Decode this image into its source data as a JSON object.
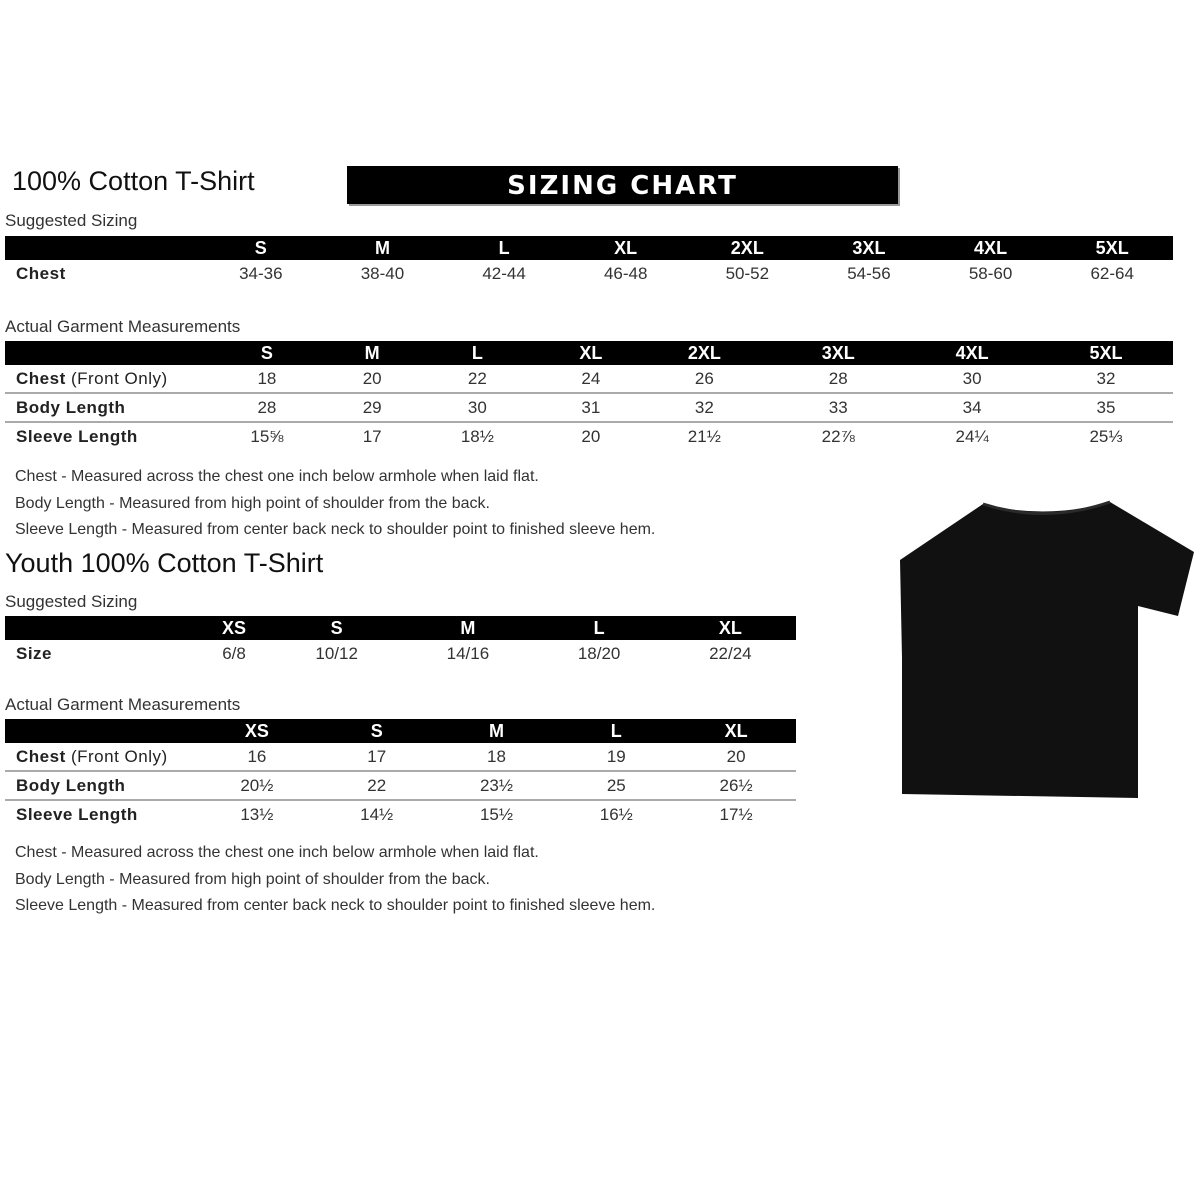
{
  "adult": {
    "title": "100% Cotton T-Shirt",
    "banner": "SIZING CHART",
    "suggested_label": "Suggested Sizing",
    "sizes": [
      "S",
      "M",
      "L",
      "XL",
      "2XL",
      "3XL",
      "4XL",
      "5XL"
    ],
    "suggested_rows": [
      {
        "label": "Chest",
        "values": [
          "34-36",
          "38-40",
          "42-44",
          "46-48",
          "50-52",
          "54-56",
          "58-60",
          "62-64"
        ]
      }
    ],
    "actual_label": "Actual Garment Measurements",
    "actual_rows": [
      {
        "label": "Chest",
        "suffix": " (Front Only)",
        "values": [
          "18",
          "20",
          "22",
          "24",
          "26",
          "28",
          "30",
          "32"
        ]
      },
      {
        "label": "Body Length",
        "suffix": "",
        "values": [
          "28",
          "29",
          "30",
          "31",
          "32",
          "33",
          "34",
          "35"
        ]
      },
      {
        "label": "Sleeve Length",
        "suffix": "",
        "values": [
          "15⅝",
          "17",
          "18½",
          "20",
          "21½",
          "22⅞",
          "24¼",
          "25⅓"
        ]
      }
    ],
    "notes": [
      "Chest - Measured across the chest one inch below armhole when laid flat.",
      "Body Length - Measured from high point of shoulder from the back.",
      "Sleeve Length - Measured from center back neck to shoulder point to finished sleeve hem."
    ]
  },
  "youth": {
    "title": "Youth 100% Cotton T-Shirt",
    "suggested_label": "Suggested Sizing",
    "sizes": [
      "XS",
      "S",
      "M",
      "L",
      "XL"
    ],
    "suggested_rows": [
      {
        "label": "Size",
        "values": [
          "6/8",
          "10/12",
          "14/16",
          "18/20",
          "22/24"
        ]
      }
    ],
    "actual_label": "Actual Garment Measurements",
    "actual_rows": [
      {
        "label": "Chest",
        "suffix": " (Front Only)",
        "values": [
          "16",
          "17",
          "18",
          "19",
          "20"
        ]
      },
      {
        "label": "Body Length",
        "suffix": "",
        "values": [
          "20½",
          "22",
          "23½",
          "25",
          "26½"
        ]
      },
      {
        "label": "Sleeve Length",
        "suffix": "",
        "values": [
          "13½",
          "14½",
          "15½",
          "16½",
          "17½"
        ]
      }
    ],
    "notes": [
      "Chest - Measured across the chest one inch below armhole when laid flat.",
      "Body Length - Measured from high point of shoulder from the back.",
      "Sleeve Length - Measured from center back neck to shoulder point to finished sleeve hem."
    ]
  },
  "image": {
    "icon": "t-shirt-icon",
    "color": "#111111"
  }
}
